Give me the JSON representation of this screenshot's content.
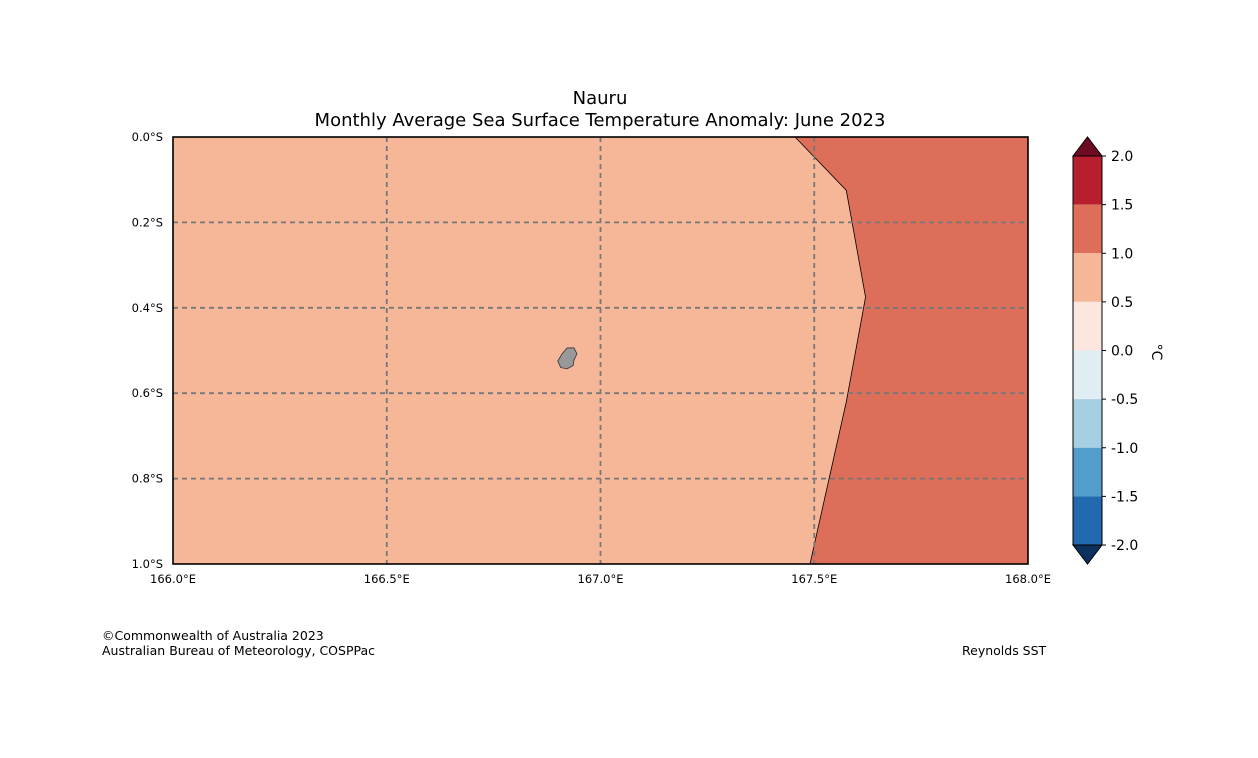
{
  "title": "Nauru",
  "subtitle": "Monthly Average Sea Surface Temperature Anomaly: June 2023",
  "map": {
    "lon_range": [
      166.0,
      168.0
    ],
    "lat_range": [
      0.0,
      -1.0
    ],
    "lon_ticks": [
      {
        "value": 166.0,
        "label": "166.0°E"
      },
      {
        "value": 166.5,
        "label": "166.5°E"
      },
      {
        "value": 167.0,
        "label": "167.0°E"
      },
      {
        "value": 167.5,
        "label": "167.5°E"
      },
      {
        "value": 168.0,
        "label": "168.0°E"
      }
    ],
    "lat_ticks": [
      {
        "value": 0.0,
        "label": "0.0°S"
      },
      {
        "value": -0.2,
        "label": "0.2°S"
      },
      {
        "value": -0.4,
        "label": "0.4°S"
      },
      {
        "value": -0.6,
        "label": "0.6°S"
      },
      {
        "value": -0.8,
        "label": "0.8°S"
      },
      {
        "value": -1.0,
        "label": "1.0°S"
      }
    ],
    "base_anomaly_color": "#f6b799",
    "warm_region_color": "#dd6f5a",
    "warm_region_boundary": [
      {
        "lon": 167.455,
        "lat": 0.0
      },
      {
        "lon": 167.575,
        "lat": -0.125
      },
      {
        "lon": 167.62,
        "lat": -0.375
      },
      {
        "lon": 167.575,
        "lat": -0.62
      },
      {
        "lon": 167.49,
        "lat": -1.0
      }
    ],
    "island_name": "Nauru",
    "island_color": "#999999",
    "island_outline": [
      {
        "lon": 166.922,
        "lat": -0.494
      },
      {
        "lon": 166.938,
        "lat": -0.494
      },
      {
        "lon": 166.945,
        "lat": -0.508
      },
      {
        "lon": 166.938,
        "lat": -0.522
      },
      {
        "lon": 166.936,
        "lat": -0.535
      },
      {
        "lon": 166.922,
        "lat": -0.543
      },
      {
        "lon": 166.907,
        "lat": -0.54
      },
      {
        "lon": 166.9,
        "lat": -0.525
      },
      {
        "lon": 166.91,
        "lat": -0.508
      }
    ],
    "gridline_color": "#777777"
  },
  "colorbar": {
    "unit_label": "°C",
    "tick_labels": [
      "2.0",
      "1.5",
      "1.0",
      "0.5",
      "0.0",
      "-0.5",
      "-1.0",
      "-1.5",
      "-2.0"
    ],
    "bins": [
      {
        "from": 1.5,
        "to": 2.0,
        "color": "#b71f2e"
      },
      {
        "from": 1.0,
        "to": 1.5,
        "color": "#dd6f5a"
      },
      {
        "from": 0.5,
        "to": 1.0,
        "color": "#f6b799"
      },
      {
        "from": 0.0,
        "to": 0.5,
        "color": "#fbe7de"
      },
      {
        "from": -0.5,
        "to": 0.0,
        "color": "#e0edf3"
      },
      {
        "from": -1.0,
        "to": -0.5,
        "color": "#a6cfe4"
      },
      {
        "from": -1.5,
        "to": -1.0,
        "color": "#529dcc"
      },
      {
        "from": -2.0,
        "to": -1.5,
        "color": "#2369b0"
      }
    ],
    "over_color": "#6e0b23",
    "under_color": "#0c315f"
  },
  "credits": {
    "line1": "©Commonwealth of Australia 2023",
    "line2": "Australian Bureau of Meteorology, COSPPac",
    "source": "Reynolds SST"
  }
}
